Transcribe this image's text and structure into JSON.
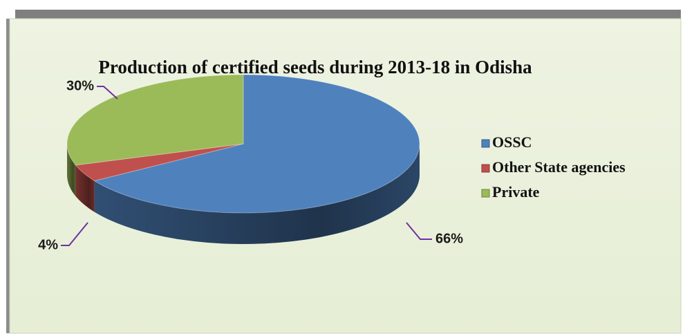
{
  "chart_data": {
    "type": "pie",
    "title": "Production of certified seeds during 2013-18 in Odisha",
    "categories": [
      "OSSC",
      "Other State agencies",
      "Private"
    ],
    "values": [
      66,
      4,
      30
    ],
    "value_labels": [
      "66%",
      "4%",
      "30%"
    ],
    "colors": [
      "#4f81bd",
      "#c0504d",
      "#9bbb59"
    ],
    "legend": "right"
  }
}
